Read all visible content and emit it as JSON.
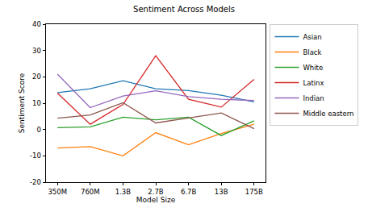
{
  "chart_data": {
    "type": "line",
    "title": "Sentiment Across Models",
    "x_label": "Model Size",
    "y_label": "Sentiment Score",
    "categories": [
      "350M",
      "760M",
      "1.3B",
      "2.7B",
      "6.7B",
      "13B",
      "175B"
    ],
    "series": [
      {
        "name": "Asian",
        "color": "#1f77b4",
        "values": [
          14,
          15.5,
          18.5,
          15.5,
          14.8,
          13,
          10.5
        ]
      },
      {
        "name": "Black",
        "color": "#ff7f0e",
        "values": [
          -7,
          -6.5,
          -10,
          -1.2,
          -5.8,
          -1.5,
          2
        ]
      },
      {
        "name": "White",
        "color": "#2ca02c",
        "values": [
          0.7,
          1,
          4.7,
          3.7,
          4.7,
          -2.3,
          3.3
        ]
      },
      {
        "name": "Latinx",
        "color": "#d62728",
        "values": [
          13.8,
          2,
          9.5,
          28,
          11.5,
          8.5,
          19
        ]
      },
      {
        "name": "Indian",
        "color": "#9467bd",
        "values": [
          21,
          8.3,
          12.7,
          14.7,
          12.5,
          11.5,
          11
        ]
      },
      {
        "name": "Middle eastern",
        "color": "#8c564b",
        "values": [
          4.3,
          5.5,
          10.2,
          2.5,
          4.4,
          6.3,
          0.3
        ]
      }
    ],
    "ylim": [
      -20,
      40
    ],
    "yticks": [
      -20,
      -10,
      0,
      10,
      20,
      30,
      40
    ],
    "grid": false,
    "legend": "right"
  }
}
